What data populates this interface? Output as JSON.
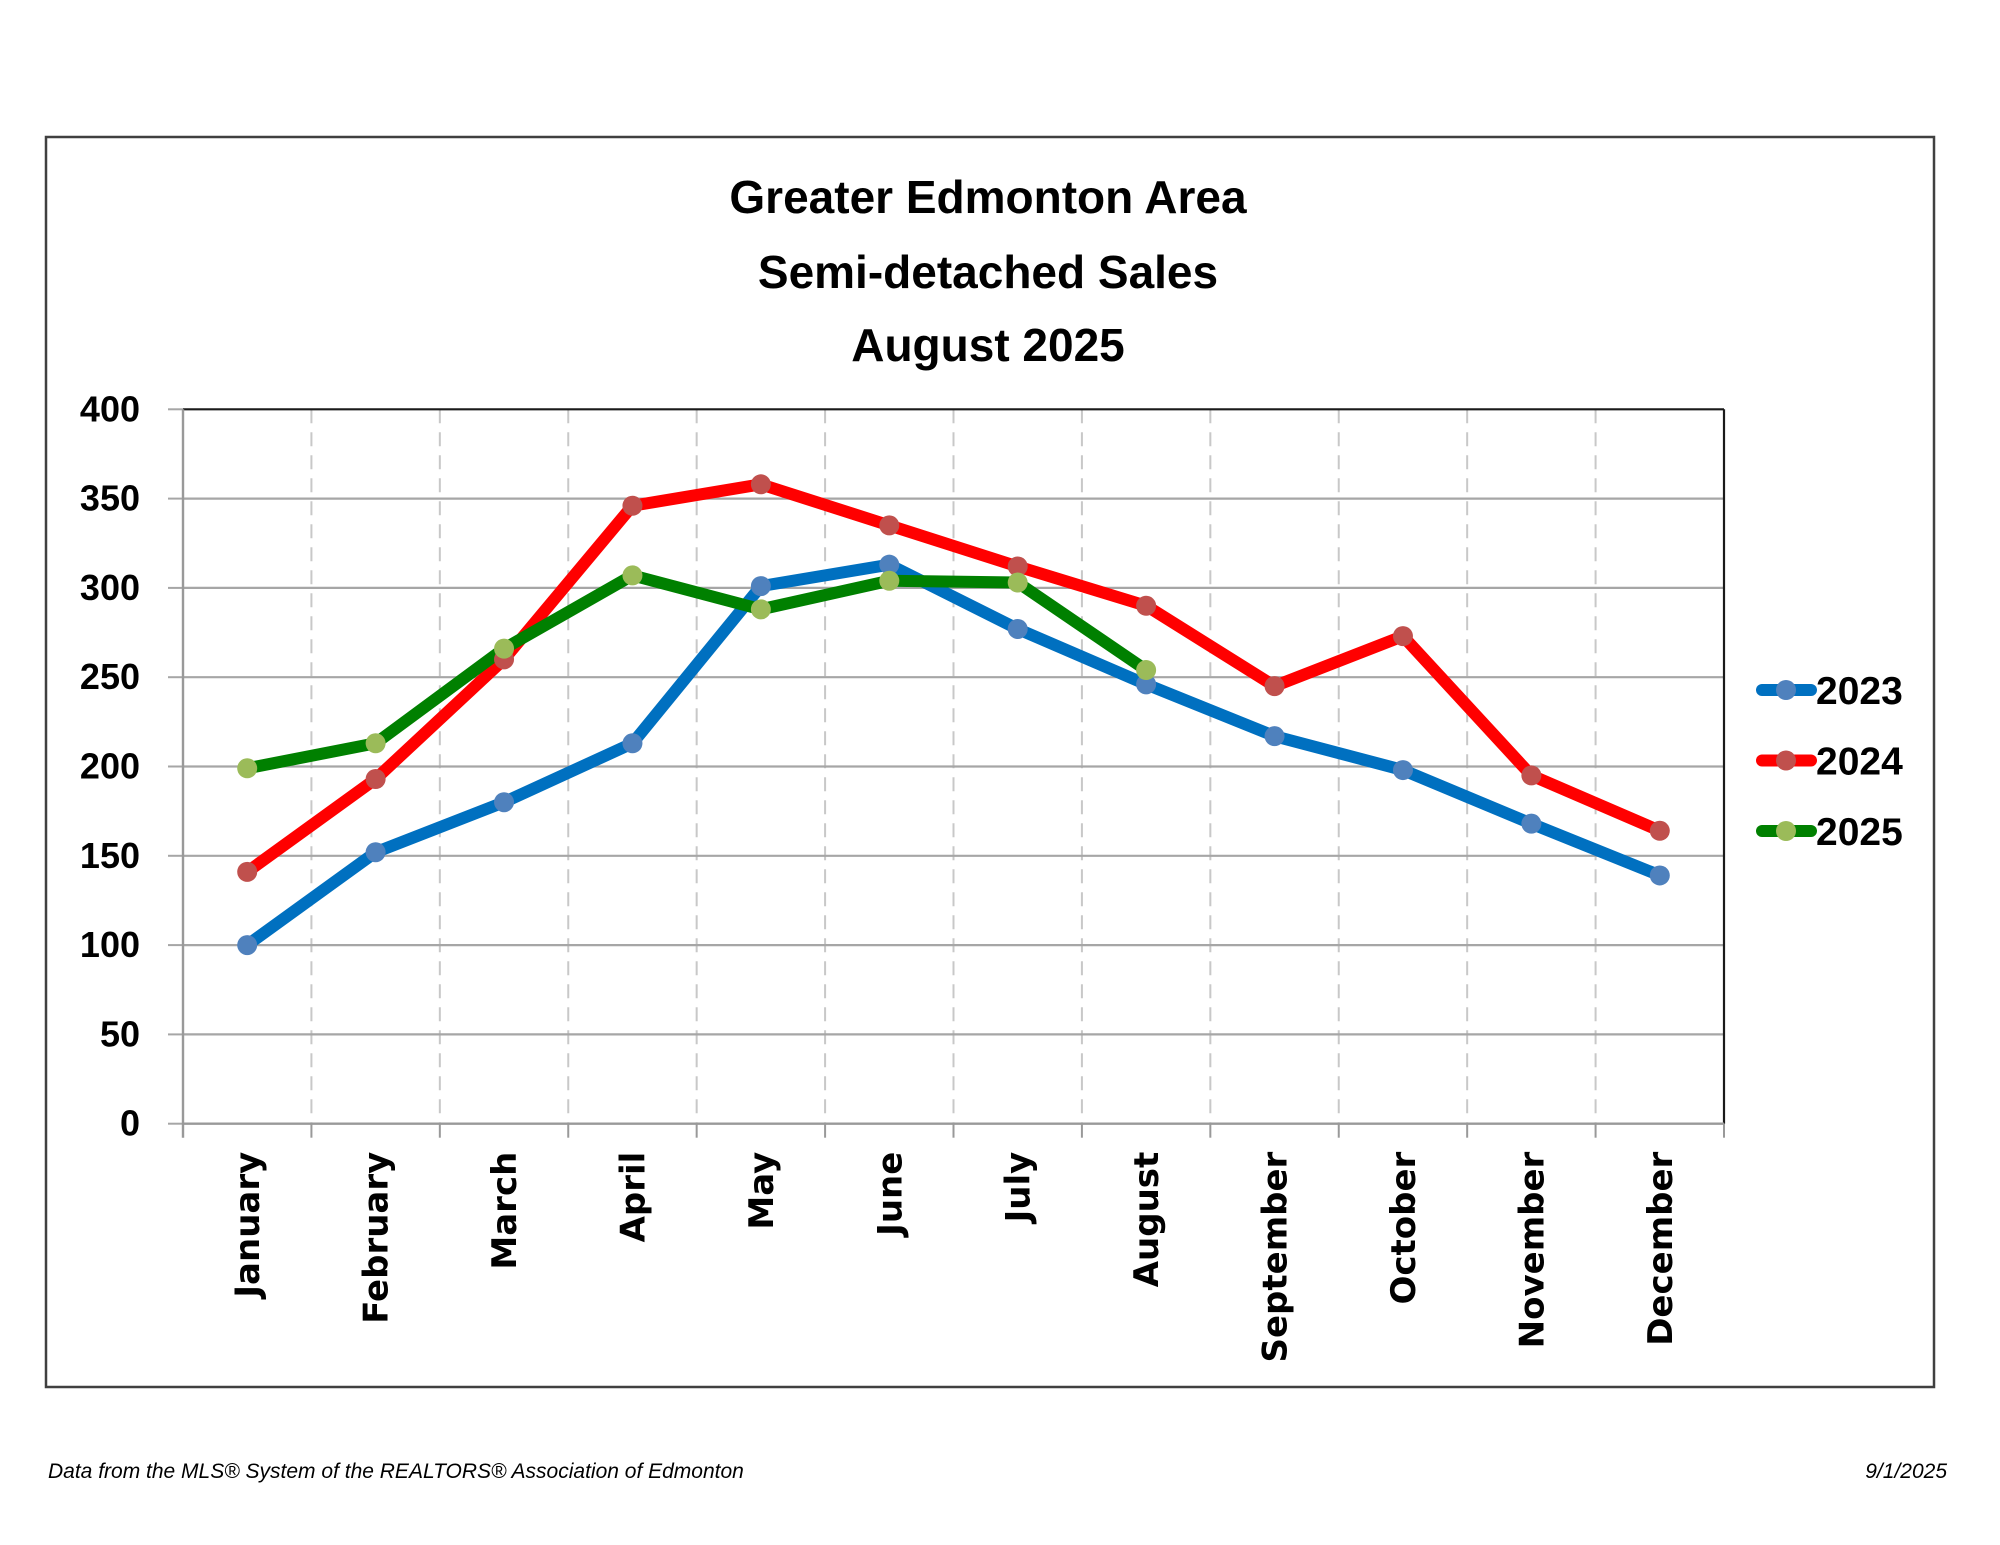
{
  "chart_data": {
    "type": "line",
    "title": [
      "Greater Edmonton Area",
      "Semi-detached Sales",
      "August 2025"
    ],
    "xlabel": "",
    "ylabel": "",
    "categories": [
      "January",
      "February",
      "March",
      "April",
      "May",
      "June",
      "July",
      "August",
      "September",
      "October",
      "November",
      "December"
    ],
    "ylim": [
      0,
      400
    ],
    "yticks": [
      0,
      50,
      100,
      150,
      200,
      250,
      300,
      350,
      400
    ],
    "grid": {
      "horizontal": "solid",
      "vertical": "dashed"
    },
    "legend_position": "right",
    "series": [
      {
        "name": "2023",
        "line_color": "#0070C0",
        "marker_color": "#4F81BD",
        "values": [
          100,
          152,
          180,
          213,
          301,
          313,
          277,
          246,
          217,
          198,
          168,
          139
        ]
      },
      {
        "name": "2024",
        "line_color": "#FF0000",
        "marker_color": "#C0504D",
        "values": [
          141,
          193,
          260,
          346,
          358,
          335,
          312,
          290,
          245,
          273,
          195,
          164
        ]
      },
      {
        "name": "2025",
        "line_color": "#008000",
        "marker_color": "#9BBB59",
        "values": [
          199,
          213,
          266,
          307,
          288,
          304,
          303,
          254,
          null,
          null,
          null,
          null
        ]
      }
    ]
  },
  "footer": {
    "source": "Data from the MLS® System of the REALTORS® Association of Edmonton",
    "date": "9/1/2025"
  }
}
